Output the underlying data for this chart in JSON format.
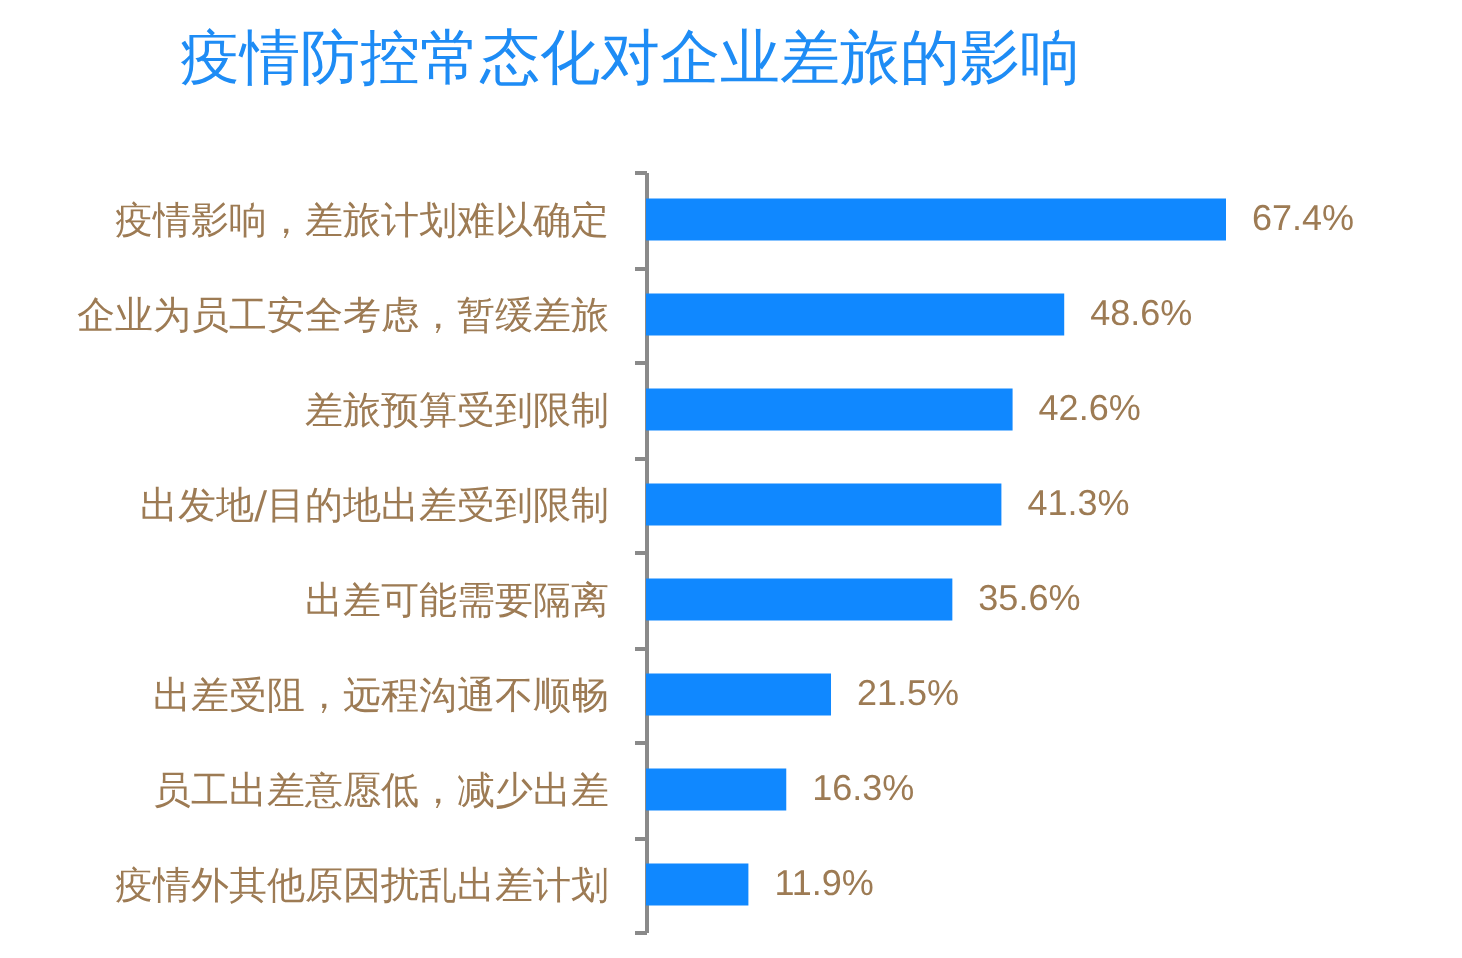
{
  "chart_data": {
    "type": "bar",
    "orientation": "horizontal",
    "title": "疫情防控常态化对企业差旅的影响",
    "categories": [
      "疫情影响，差旅计划难以确定",
      "企业为员工安全考虑，暂缓差旅",
      "差旅预算受到限制",
      "出发地/目的地出差受到限制",
      "出差可能需要隔离",
      "出差受阻，远程沟通不顺畅",
      "员工出差意愿低，减少出差",
      "疫情外其他原因扰乱出差计划"
    ],
    "values": [
      67.4,
      48.6,
      42.6,
      41.3,
      35.6,
      21.5,
      16.3,
      11.9
    ],
    "value_labels": [
      "67.4%",
      "48.6%",
      "42.6%",
      "41.3%",
      "35.6%",
      "21.5%",
      "16.3%",
      "11.9%"
    ],
    "color": "#1088ff",
    "tick_labels": "y"
  }
}
